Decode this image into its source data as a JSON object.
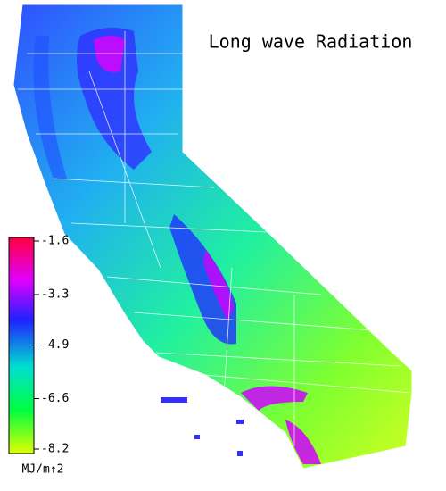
{
  "title": "Long wave Radiation",
  "colorbar": {
    "lim": [
      -8.2,
      -1.6
    ],
    "ticks": [
      -1.6,
      -3.3,
      -4.9,
      -6.6,
      -8.2
    ],
    "unit": "MJ/m↑2"
  }
}
